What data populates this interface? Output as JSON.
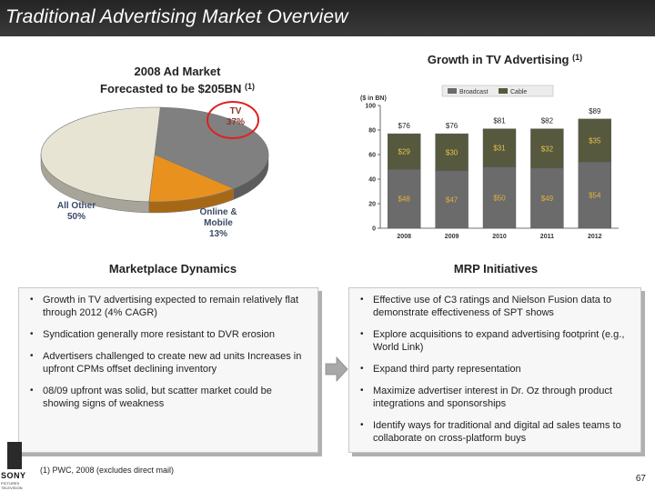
{
  "header": {
    "title": "Traditional Advertising Market Overview"
  },
  "pie": {
    "title_line1": "2008 Ad Market",
    "title_line2": "Forecasted to be $205BN",
    "footnote_ref": "(1)",
    "labels": {
      "tv_name": "TV",
      "tv_pct": "37%",
      "other_name": "All Other",
      "other_pct": "50%",
      "online_name1": "Online &",
      "online_name2": "Mobile",
      "online_pct": "13%"
    },
    "colors": {
      "tv": "#808080",
      "other": "#e8e4d4",
      "online": "#e8911f",
      "highlight": "#e02020"
    }
  },
  "chart_data": [
    {
      "type": "pie",
      "title": "2008 Ad Market Forecasted to be $205BN (1)",
      "slices": [
        {
          "name": "TV",
          "value": 37
        },
        {
          "name": "Online & Mobile",
          "value": 13
        },
        {
          "name": "All Other",
          "value": 50
        }
      ]
    },
    {
      "type": "bar",
      "stacked": true,
      "title": "Growth in TV Advertising",
      "footnote_ref": "(1)",
      "unit_label": "($ in BN)",
      "categories": [
        "2008",
        "2009",
        "2010",
        "2011",
        "2012"
      ],
      "series": [
        {
          "name": "Broadcast",
          "values": [
            48,
            47,
            50,
            49,
            54
          ],
          "labels": [
            "$48",
            "$47",
            "$50",
            "$49",
            "$54"
          ],
          "color": "#6b6b6b"
        },
        {
          "name": "Cable",
          "values": [
            29,
            30,
            31,
            32,
            35
          ],
          "labels": [
            "$29",
            "$30",
            "$31",
            "$32",
            "$35"
          ],
          "color": "#56593e"
        }
      ],
      "totals": [
        "$76",
        "$76",
        "$81",
        "$82",
        "$89"
      ],
      "ylim": [
        0,
        100
      ],
      "yticks": [
        "0",
        "20",
        "40",
        "60",
        "80",
        "100"
      ],
      "legend": "top"
    }
  ],
  "marketplace": {
    "title": "Marketplace Dynamics",
    "items": [
      "Growth in TV advertising expected to remain relatively flat through 2012 (4% CAGR)",
      "Syndication generally more resistant to DVR erosion",
      "Advertisers challenged to create new ad units Increases in upfront CPMs offset declining inventory",
      "08/09 upfront was solid, but scatter market could be showing signs of weakness"
    ]
  },
  "mrp": {
    "title": "MRP Initiatives",
    "items": [
      "Effective use of C3 ratings and Nielson Fusion data to demonstrate effectiveness of SPT shows",
      "Explore acquisitions to expand advertising footprint (e.g., World Link)",
      "Expand third party representation",
      "Maximize advertiser interest in Dr. Oz through product integrations and sponsorships",
      "Identify ways for traditional and digital ad sales teams to collaborate on cross-platform buys"
    ]
  },
  "footer": {
    "footnote": "(1) PWC, 2008 (excludes direct mail)",
    "page": "67",
    "logo_brand": "SONY",
    "logo_sub": "PICTURES TELEVISION"
  }
}
